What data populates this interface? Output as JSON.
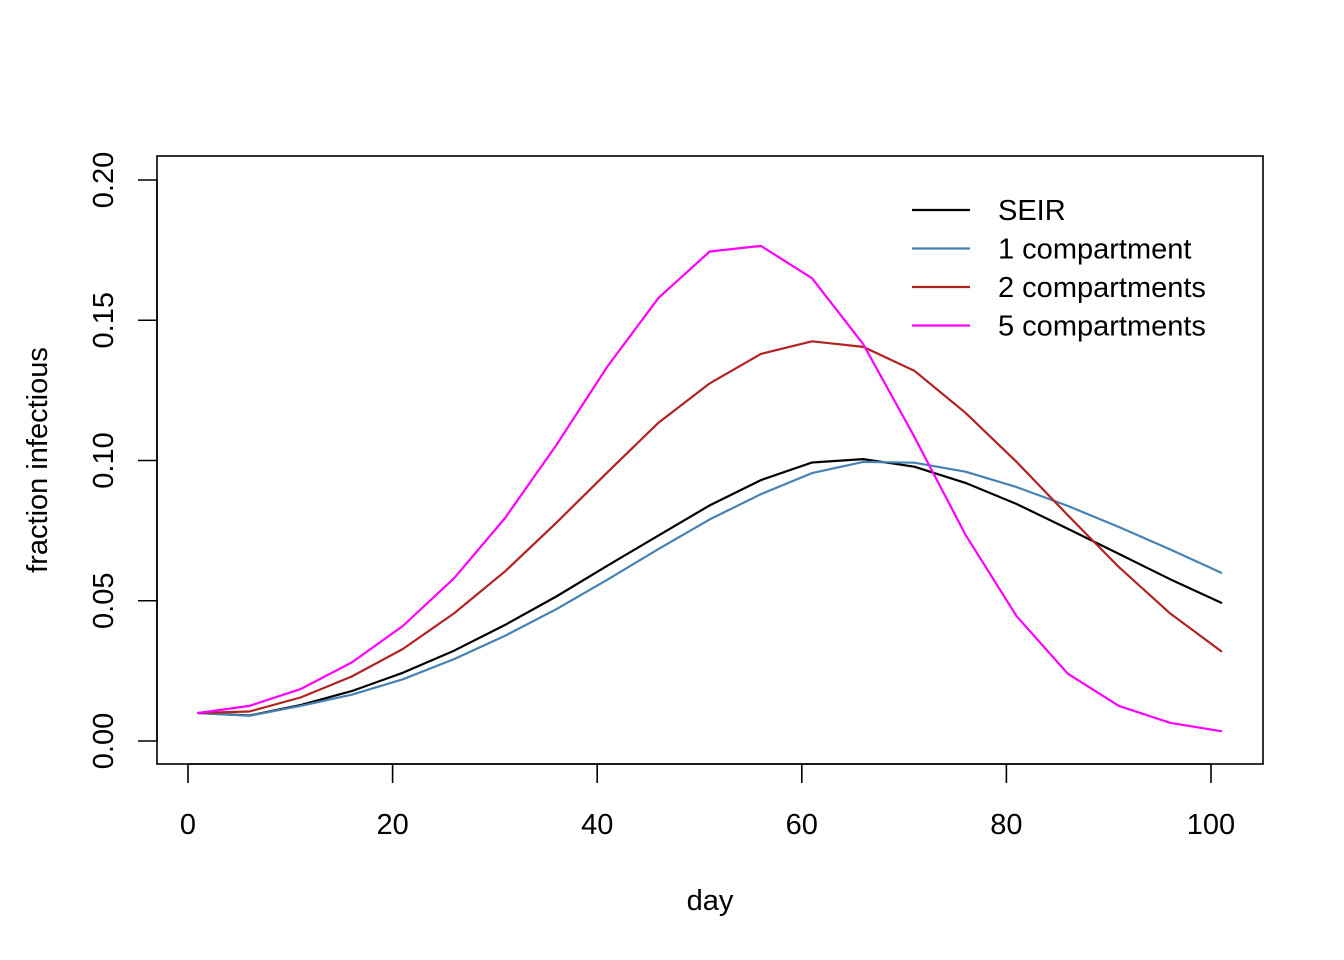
{
  "chart_data": {
    "type": "line",
    "title": "",
    "xlabel": "day",
    "ylabel": "fraction infectious",
    "xlim": [
      1,
      101
    ],
    "ylim": [
      0,
      0.2
    ],
    "x_ticks": [
      "0",
      "20",
      "40",
      "60",
      "80",
      "100"
    ],
    "y_ticks": [
      "0.00",
      "0.05",
      "0.10",
      "0.15",
      "0.20"
    ],
    "grid": false,
    "legend_position": "top-right",
    "x": [
      1,
      6,
      11,
      16,
      21,
      26,
      31,
      36,
      41,
      46,
      51,
      56,
      61,
      66,
      71,
      76,
      81,
      86,
      91,
      96,
      101
    ],
    "series": [
      {
        "name": "SEIR",
        "color": "#000000",
        "values": [
          0.01,
          0.0091,
          0.0128,
          0.0178,
          0.0243,
          0.0322,
          0.0414,
          0.0515,
          0.0625,
          0.0733,
          0.084,
          0.093,
          0.0993,
          0.1005,
          0.0978,
          0.092,
          0.0845,
          0.0757,
          0.0667,
          0.0577,
          0.0493
        ]
      },
      {
        "name": "1 compartment",
        "color": "#4682b4",
        "values": [
          0.01,
          0.009,
          0.0125,
          0.0165,
          0.022,
          0.0292,
          0.0375,
          0.047,
          0.0575,
          0.0685,
          0.079,
          0.088,
          0.0955,
          0.0995,
          0.0992,
          0.096,
          0.0905,
          0.0838,
          0.0763,
          0.0683,
          0.06
        ]
      },
      {
        "name": "2 compartments",
        "color": "#b22222",
        "values": [
          0.01,
          0.0105,
          0.0155,
          0.023,
          0.0328,
          0.0455,
          0.0605,
          0.0778,
          0.0958,
          0.1135,
          0.1275,
          0.138,
          0.1425,
          0.1405,
          0.132,
          0.117,
          0.0995,
          0.0805,
          0.062,
          0.0455,
          0.032
        ]
      },
      {
        "name": "5 compartments",
        "color": "#ff00ff",
        "values": [
          0.01,
          0.0125,
          0.0185,
          0.028,
          0.041,
          0.058,
          0.0795,
          0.1055,
          0.1335,
          0.158,
          0.1745,
          0.1765,
          0.165,
          0.1415,
          0.1085,
          0.0735,
          0.0445,
          0.024,
          0.0125,
          0.0065,
          0.0035
        ]
      }
    ]
  }
}
